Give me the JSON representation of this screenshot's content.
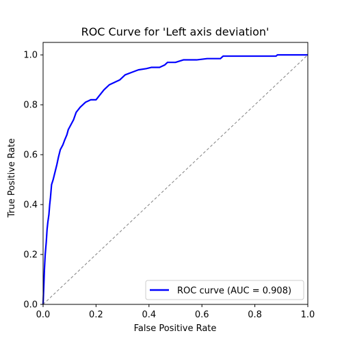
{
  "chart_data": {
    "type": "line",
    "title": "ROC Curve for 'Left axis deviation'",
    "xlabel": "False Positive Rate",
    "ylabel": "True Positive Rate",
    "xlim": [
      0.0,
      1.0
    ],
    "ylim": [
      0.0,
      1.05
    ],
    "x_ticks": [
      "0.0",
      "0.2",
      "0.4",
      "0.6",
      "0.8",
      "1.0"
    ],
    "y_ticks": [
      "0.0",
      "0.2",
      "0.4",
      "0.6",
      "0.8",
      "1.0"
    ],
    "grid": false,
    "legend_position": "lower-right",
    "series": [
      {
        "name": "ROC curve (AUC = 0.908)",
        "color": "#0000ff",
        "style": "solid",
        "points": [
          [
            0.0,
            0.0
          ],
          [
            0.003,
            0.08
          ],
          [
            0.005,
            0.14
          ],
          [
            0.008,
            0.2
          ],
          [
            0.012,
            0.25
          ],
          [
            0.015,
            0.3
          ],
          [
            0.018,
            0.33
          ],
          [
            0.022,
            0.36
          ],
          [
            0.025,
            0.4
          ],
          [
            0.028,
            0.43
          ],
          [
            0.032,
            0.48
          ],
          [
            0.038,
            0.5
          ],
          [
            0.045,
            0.53
          ],
          [
            0.052,
            0.56
          ],
          [
            0.058,
            0.59
          ],
          [
            0.065,
            0.62
          ],
          [
            0.075,
            0.64
          ],
          [
            0.082,
            0.66
          ],
          [
            0.09,
            0.68
          ],
          [
            0.095,
            0.7
          ],
          [
            0.105,
            0.72
          ],
          [
            0.115,
            0.74
          ],
          [
            0.125,
            0.77
          ],
          [
            0.14,
            0.79
          ],
          [
            0.16,
            0.81
          ],
          [
            0.18,
            0.82
          ],
          [
            0.2,
            0.82
          ],
          [
            0.215,
            0.84
          ],
          [
            0.23,
            0.86
          ],
          [
            0.25,
            0.88
          ],
          [
            0.27,
            0.89
          ],
          [
            0.29,
            0.9
          ],
          [
            0.31,
            0.92
          ],
          [
            0.335,
            0.93
          ],
          [
            0.36,
            0.94
          ],
          [
            0.39,
            0.945
          ],
          [
            0.41,
            0.95
          ],
          [
            0.44,
            0.95
          ],
          [
            0.46,
            0.96
          ],
          [
            0.47,
            0.97
          ],
          [
            0.5,
            0.97
          ],
          [
            0.53,
            0.98
          ],
          [
            0.58,
            0.98
          ],
          [
            0.62,
            0.985
          ],
          [
            0.67,
            0.985
          ],
          [
            0.68,
            0.995
          ],
          [
            0.72,
            0.995
          ],
          [
            0.88,
            0.995
          ],
          [
            0.885,
            1.0
          ],
          [
            1.0,
            1.0
          ]
        ]
      },
      {
        "name": "",
        "color": "#808080",
        "style": "dashed",
        "points": [
          [
            0.0,
            0.0
          ],
          [
            1.0,
            1.0
          ]
        ]
      }
    ]
  }
}
